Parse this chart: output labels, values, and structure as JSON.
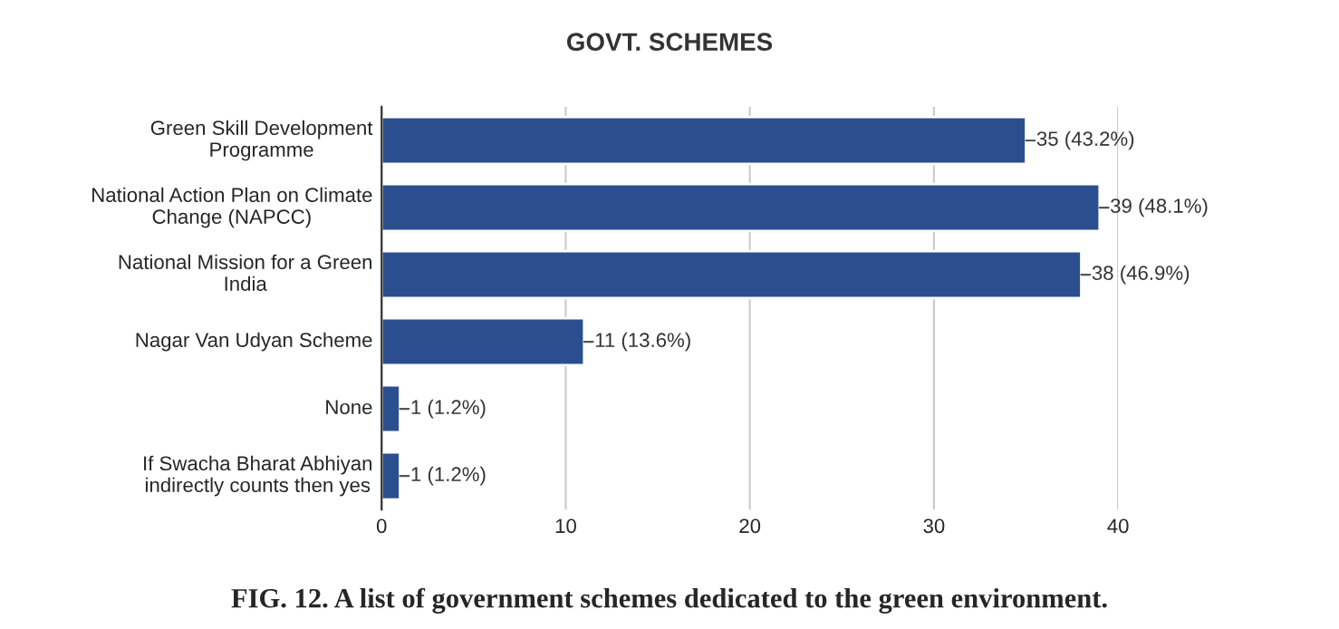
{
  "chart_data": {
    "type": "bar",
    "orientation": "horizontal",
    "title": "GOVT. SCHEMES",
    "categories": [
      "Green Skill Development Programme",
      "National Action Plan on Climate Change (NAPCC)",
      "National Mission for a Green India",
      "Nagar Van Udyan Scheme",
      "None",
      "If Swacha Bharat Abhiyan indirectly counts then yes"
    ],
    "values": [
      35,
      39,
      38,
      11,
      1,
      1
    ],
    "value_labels": [
      "35 (43.2%)",
      "39 (48.1%)",
      "38 (46.9%)",
      "11 (13.6%)",
      "1 (1.2%)",
      "1 (1.2%)"
    ],
    "color": "#2b4f8e",
    "xlim": [
      0,
      40
    ],
    "xticks": [
      0,
      10,
      20,
      30,
      40
    ],
    "grid": "x",
    "legend": false,
    "annotations": [
      "FIG. 12. A list of government schemes dedicated to the green environment."
    ]
  }
}
